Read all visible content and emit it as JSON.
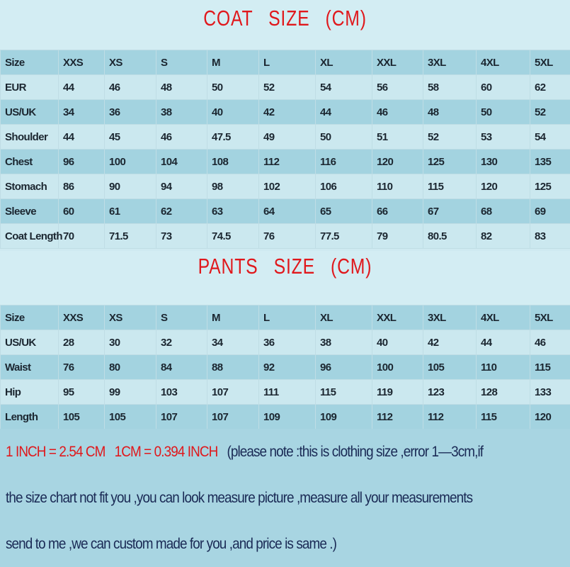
{
  "coat": {
    "title": "COAT SIZE (CM)",
    "rows": [
      [
        "Size",
        "XXS",
        "XS",
        "S",
        "M",
        "L",
        "XL",
        "XXL",
        "3XL",
        "4XL",
        "5XL"
      ],
      [
        "EUR",
        "44",
        "46",
        "48",
        "50",
        "52",
        "54",
        "56",
        "58",
        "60",
        "62"
      ],
      [
        "US/UK",
        "34",
        "36",
        "38",
        "40",
        "42",
        "44",
        "46",
        "48",
        "50",
        "52"
      ],
      [
        "Shoulder",
        "44",
        "45",
        "46",
        "47.5",
        "49",
        "50",
        "51",
        "52",
        "53",
        "54"
      ],
      [
        "Chest",
        "96",
        "100",
        "104",
        "108",
        "112",
        "116",
        "120",
        "125",
        "130",
        "135"
      ],
      [
        "Stomach",
        "86",
        "90",
        "94",
        "98",
        "102",
        "106",
        "110",
        "115",
        "120",
        "125"
      ],
      [
        "Sleeve",
        "60",
        "61",
        "62",
        "63",
        "64",
        "65",
        "66",
        "67",
        "68",
        "69"
      ],
      [
        "Coat Length",
        "70",
        "71.5",
        "73",
        "74.5",
        "76",
        "77.5",
        "79",
        "80.5",
        "82",
        "83"
      ]
    ]
  },
  "pants": {
    "title": "PANTS SIZE (CM)",
    "rows": [
      [
        "Size",
        "XXS",
        "XS",
        "S",
        "M",
        "L",
        "XL",
        "XXL",
        "3XL",
        "4XL",
        "5XL"
      ],
      [
        "US/UK",
        "28",
        "30",
        "32",
        "34",
        "36",
        "38",
        "40",
        "42",
        "44",
        "46"
      ],
      [
        "Waist",
        "76",
        "80",
        "84",
        "88",
        "92",
        "96",
        "100",
        "105",
        "110",
        "115"
      ],
      [
        "Hip",
        "95",
        "99",
        "103",
        "107",
        "111",
        "115",
        "119",
        "123",
        "128",
        "133"
      ],
      [
        "Length",
        "105",
        "105",
        "107",
        "107",
        "109",
        "109",
        "112",
        "112",
        "115",
        "120"
      ]
    ]
  },
  "footer": {
    "conversion1": "1 INCH = 2.54 CM",
    "conversion2": "1CM = 0.394 INCH",
    "note_line1": "(please note :this is clothing size ,error 1—3cm,if",
    "note_line2": "the size chart not fit you ,you can look measure picture ,measure all your measurements",
    "note_line3": "send to me ,we can custom made for you ,and price is same .)"
  },
  "colors": {
    "title": "#e0181c",
    "header_row": "#a3d3e0",
    "alt_row": "#cbe8ef",
    "footer_bg": "#a8d5e2"
  }
}
